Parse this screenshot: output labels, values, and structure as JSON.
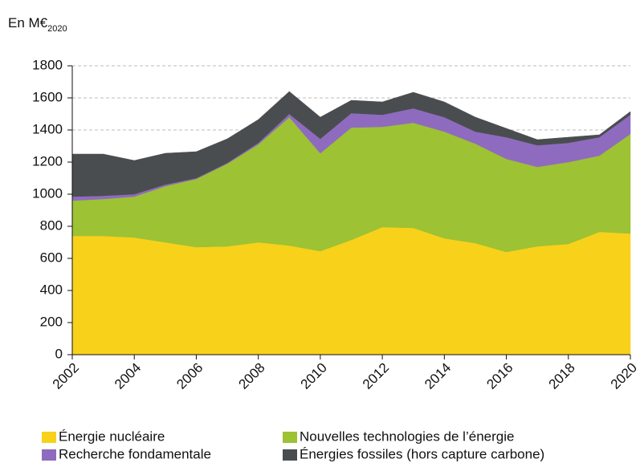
{
  "chart_data": {
    "type": "stacked_area",
    "title": "En M€",
    "title_sub": "2020",
    "x": [
      2002,
      2003,
      2004,
      2005,
      2006,
      2007,
      2008,
      2009,
      2010,
      2011,
      2012,
      2013,
      2014,
      2015,
      2016,
      2017,
      2018,
      2019,
      2020
    ],
    "xlim": [
      2002,
      2020
    ],
    "xticks": [
      2002,
      2004,
      2006,
      2008,
      2010,
      2012,
      2014,
      2016,
      2018,
      2020
    ],
    "ylim": [
      0,
      1800
    ],
    "yticks": [
      0,
      200,
      400,
      600,
      800,
      1000,
      1200,
      1400,
      1600,
      1800
    ],
    "grid": true,
    "legend": "bottom",
    "series": [
      {
        "name": "Énergie nucléaire",
        "color": "#f8d11a",
        "values": [
          740,
          740,
          730,
          700,
          670,
          675,
          700,
          680,
          645,
          715,
          795,
          790,
          725,
          695,
          640,
          675,
          690,
          765,
          755
        ]
      },
      {
        "name": "Nouvelles technologies de l’énergie",
        "color": "#9dc234",
        "values": [
          220,
          230,
          255,
          350,
          425,
          515,
          610,
          800,
          610,
          700,
          625,
          655,
          665,
          620,
          580,
          495,
          510,
          475,
          620
        ]
      },
      {
        "name": "Recherche fondamentale",
        "color": "#8e6bbf",
        "values": [
          25,
          20,
          15,
          10,
          5,
          5,
          10,
          20,
          90,
          90,
          75,
          90,
          90,
          75,
          135,
          135,
          120,
          115,
          120
        ]
      },
      {
        "name": "Énergies fossiles (hors capture carbone)",
        "color": "#4a4d4f",
        "values": [
          265,
          260,
          210,
          195,
          165,
          150,
          145,
          140,
          135,
          80,
          80,
          100,
          95,
          90,
          55,
          35,
          35,
          15,
          20
        ]
      }
    ]
  }
}
